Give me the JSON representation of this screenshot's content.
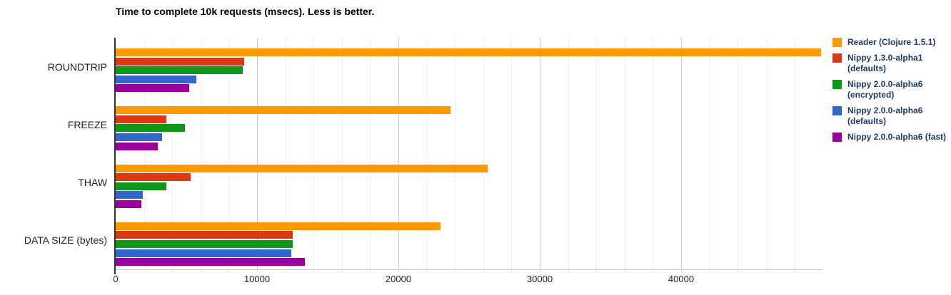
{
  "chart_data": {
    "type": "bar",
    "orientation": "horizontal",
    "title": "Time to complete 10k requests (msecs). Less is better.",
    "categories": [
      "ROUNDTRIP",
      "FREEZE",
      "THAW",
      "DATA SIZE (bytes)"
    ],
    "series": [
      {
        "name": "Reader (Clojure 1.5.1)",
        "legend_lines": [
          "Reader (Clojure 1.5.1)"
        ],
        "color": "#FF9900",
        "values": [
          49900,
          23700,
          26300,
          23000
        ]
      },
      {
        "name": "Nippy 1.3.0-alpha1 (defaults)",
        "legend_lines": [
          "Nippy 1.3.0-alpha1",
          "(defaults)"
        ],
        "color": "#DC3912",
        "values": [
          9100,
          3600,
          5300,
          12500
        ]
      },
      {
        "name": "Nippy 2.0.0-alpha6 (encrypted)",
        "legend_lines": [
          "Nippy 2.0.0-alpha6",
          "(encrypted)"
        ],
        "color": "#109618",
        "values": [
          9000,
          4900,
          3600,
          12500
        ]
      },
      {
        "name": "Nippy 2.0.0-alpha6 (defaults)",
        "legend_lines": [
          "Nippy 2.0.0-alpha6",
          "(defaults)"
        ],
        "color": "#3366CC",
        "values": [
          5700,
          3300,
          1900,
          12400
        ]
      },
      {
        "name": "Nippy 2.0.0-alpha6 (fast)",
        "legend_lines": [
          "Nippy 2.0.0-alpha6 (fast)"
        ],
        "color": "#990099",
        "values": [
          5200,
          3000,
          1800,
          13400
        ]
      }
    ],
    "x_axis": {
      "min": 0,
      "max": 50000,
      "ticks": [
        0,
        10000,
        20000,
        30000,
        40000
      ],
      "tick_labels": [
        "0",
        "10000",
        "20000",
        "30000",
        "40000"
      ],
      "minor_step": 2000,
      "major_step": 10000
    },
    "legend_position": "right",
    "grid": true,
    "styles": {
      "background": "#ffffff",
      "legend_text_color": "#1f3a68",
      "axis_text_color": "#222222",
      "minor_grid_color": "#efefef",
      "major_grid_color": "#c9c9c9",
      "baseline_color": "#333333"
    }
  }
}
